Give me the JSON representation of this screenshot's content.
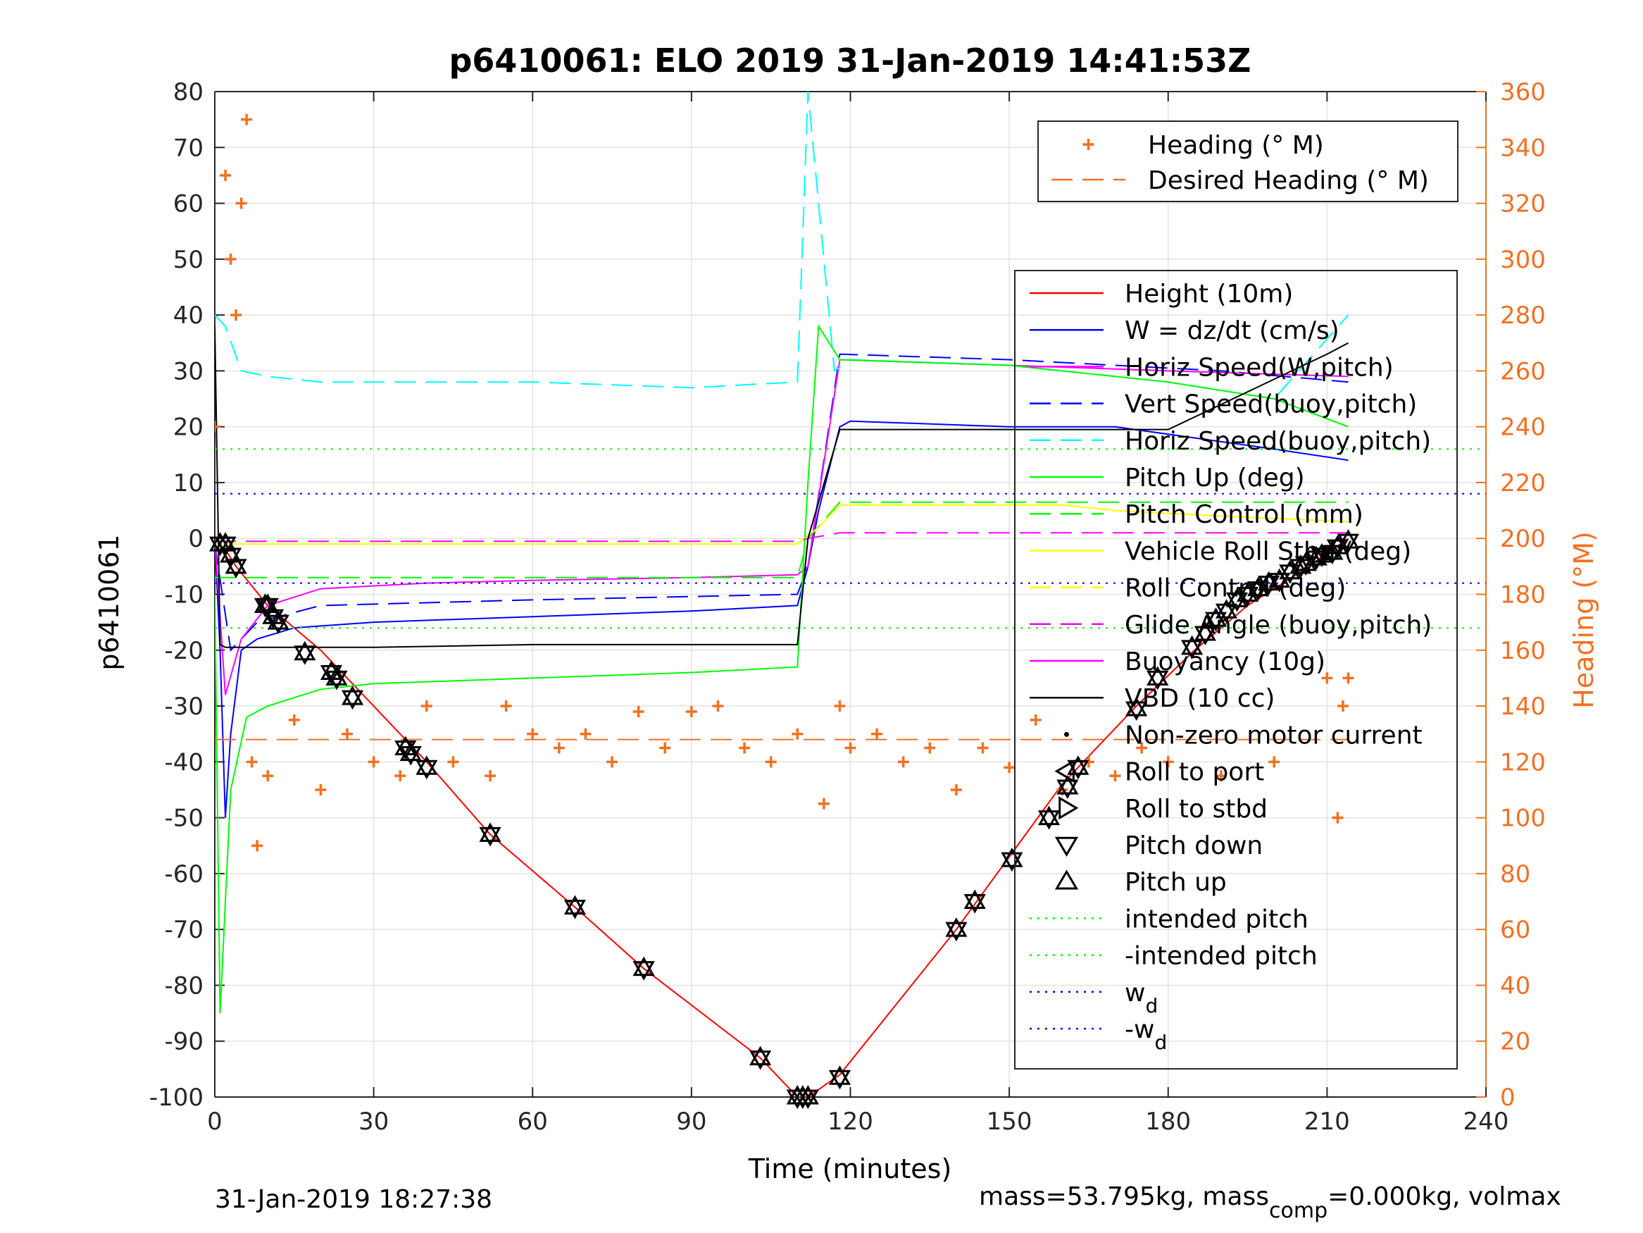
{
  "chart_data": {
    "type": "line",
    "title": "p6410061: ELO 2019 31-Jan-2019 14:41:53Z",
    "xlabel": "Time (minutes)",
    "ylabel": "p6410061",
    "y2label": "Heading (°M)",
    "xlim": [
      0,
      240
    ],
    "ylim": [
      -100,
      80
    ],
    "y2lim": [
      0,
      360
    ],
    "xticks": [
      "0",
      "30",
      "60",
      "90",
      "120",
      "150",
      "180",
      "210",
      "240"
    ],
    "yticks": [
      "80",
      "70",
      "60",
      "50",
      "40",
      "30",
      "20",
      "10",
      "0",
      "-10",
      "-20",
      "-30",
      "-40",
      "-50",
      "-60",
      "-70",
      "-80",
      "-90",
      "-100"
    ],
    "y2ticks": [
      "360",
      "340",
      "320",
      "300",
      "280",
      "260",
      "240",
      "220",
      "200",
      "180",
      "160",
      "140",
      "120",
      "100",
      "80",
      "60",
      "40",
      "20",
      "0"
    ],
    "grid": true,
    "legend_right_axis": [
      {
        "label": "Heading (° M)",
        "color": "#f37021",
        "style": "plus"
      },
      {
        "label": "Desired Heading (° M)",
        "color": "#f37021",
        "style": "dash"
      }
    ],
    "legend_left_axis": [
      {
        "label": "Height (10m)",
        "color": "#ff0000",
        "style": "solid"
      },
      {
        "label": "W = dz/dt (cm/s)",
        "color": "#0000ff",
        "style": "solid"
      },
      {
        "label": "Horiz Speed(W,pitch)",
        "color": "#ff00ff",
        "style": "solid"
      },
      {
        "label": "Vert Speed(buoy,pitch)",
        "color": "#0000ff",
        "style": "dash"
      },
      {
        "label": "Horiz Speed(buoy,pitch)",
        "color": "#00ffff",
        "style": "dash"
      },
      {
        "label": "Pitch Up (deg)",
        "color": "#00ff00",
        "style": "solid"
      },
      {
        "label": "Pitch Control (mm)",
        "color": "#00ff00",
        "style": "dash"
      },
      {
        "label": "Vehicle Roll Stbd (deg)",
        "color": "#ffff00",
        "style": "solid"
      },
      {
        "label": "Roll Control (deg)",
        "color": "#ffff00",
        "style": "dash"
      },
      {
        "label": "Glide Angle (buoy,pitch)",
        "color": "#ff00ff",
        "style": "dash"
      },
      {
        "label": "Buoyancy (10g)",
        "color": "#ff00ff",
        "style": "solid"
      },
      {
        "label": "VBD (10 cc)",
        "color": "#000000",
        "style": "solid"
      },
      {
        "label": "Non-zero motor current",
        "color": "#000000",
        "style": "dot"
      },
      {
        "label": "Roll to port",
        "color": "#000000",
        "style": "tri-left"
      },
      {
        "label": "Roll to stbd",
        "color": "#000000",
        "style": "tri-right"
      },
      {
        "label": "Pitch down",
        "color": "#000000",
        "style": "tri-down"
      },
      {
        "label": "Pitch up",
        "color": "#000000",
        "style": "tri-up"
      },
      {
        "label": "intended pitch",
        "color": "#00ff00",
        "style": "dotted"
      },
      {
        "label": "-intended pitch",
        "color": "#00ff00",
        "style": "dotted"
      },
      {
        "label": "w",
        "sub": "d",
        "color": "#0000ff",
        "style": "dotted"
      },
      {
        "label": "-w",
        "sub": "d",
        "color": "#0000ff",
        "style": "dotted"
      }
    ],
    "series": [
      {
        "name": "Height (10m)",
        "color": "#ff0000",
        "axis": "left",
        "x": [
          0,
          2,
          4,
          10,
          20,
          30,
          40,
          52,
          68,
          81,
          103,
          110,
          112,
          118,
          140,
          150,
          160,
          174,
          185,
          195,
          205,
          214
        ],
        "y": [
          -2,
          -2,
          -5,
          -12,
          -20,
          -30,
          -40,
          -53,
          -66,
          -77,
          -93,
          -100,
          -100,
          -96,
          -70,
          -57,
          -44,
          -30,
          -20,
          -12,
          -6,
          0
        ]
      },
      {
        "name": "W = dz/dt (cm/s)",
        "color": "#0000ff",
        "axis": "left",
        "x": [
          0,
          1,
          2,
          3,
          5,
          8,
          15,
          30,
          60,
          90,
          110,
          112,
          114,
          118,
          120,
          150,
          170,
          200,
          214
        ],
        "y": [
          0,
          -20,
          -50,
          -35,
          -20,
          -18,
          -16,
          -15,
          -14,
          -13,
          -12,
          -5,
          5,
          20,
          21,
          20,
          20,
          16,
          14
        ]
      },
      {
        "name": "Vert Speed(buoy,pitch)",
        "color": "#0000ff",
        "axis": "left",
        "x": [
          0,
          3,
          8,
          20,
          60,
          110,
          112,
          118,
          150,
          190,
          214
        ],
        "y": [
          -1,
          -20,
          -15,
          -12,
          -11,
          -10,
          -5,
          33,
          32,
          30,
          28
        ]
      },
      {
        "name": "Horiz Speed(W,pitch)",
        "color": "#ff00ff",
        "axis": "left",
        "x": [
          0,
          2,
          5,
          10,
          20,
          40,
          60,
          90,
          110,
          112,
          118,
          150,
          180,
          214
        ],
        "y": [
          0,
          -28,
          -18,
          -12,
          -9,
          -8,
          -7.5,
          -7,
          -6.5,
          -5,
          32,
          31,
          30,
          29
        ]
      },
      {
        "name": "Horiz Speed(buoy,pitch)",
        "color": "#00ffff",
        "axis": "left",
        "x": [
          0,
          2,
          5,
          10,
          20,
          40,
          60,
          90,
          110,
          112,
          117,
          120,
          150,
          180,
          200,
          214
        ],
        "y": [
          40,
          38,
          30,
          29,
          28,
          28,
          28,
          27,
          28,
          80,
          30,
          32,
          31,
          28,
          25,
          40
        ]
      },
      {
        "name": "Pitch Up (deg)",
        "color": "#00ff00",
        "axis": "left",
        "x": [
          0,
          1,
          3,
          6,
          10,
          20,
          30,
          60,
          90,
          110,
          112,
          114,
          118,
          150,
          180,
          200,
          214
        ],
        "y": [
          -10,
          -85,
          -45,
          -32,
          -30,
          -27,
          -26,
          -25,
          -24,
          -23,
          10,
          38,
          32,
          31,
          28,
          25,
          20
        ]
      },
      {
        "name": "Pitch Control (mm)",
        "color": "#00ff00",
        "axis": "left",
        "x": [
          0,
          110,
          112,
          118,
          214
        ],
        "y": [
          -7,
          -7,
          0,
          6.5,
          6.5
        ]
      },
      {
        "name": "Vehicle Roll Stbd (deg)",
        "color": "#ffff00",
        "axis": "left",
        "x": [
          0,
          5,
          18,
          22,
          36,
          40,
          52,
          68,
          82,
          104,
          110,
          114,
          118,
          140,
          150,
          160,
          170,
          190,
          214
        ],
        "y": [
          -1,
          -1,
          -1,
          -1,
          -1,
          -1,
          -1,
          -1,
          -1,
          -1,
          -1,
          2,
          6,
          6,
          6,
          6,
          5,
          4,
          3
        ]
      },
      {
        "name": "Glide Angle (buoy,pitch)",
        "color": "#ff00ff",
        "axis": "left",
        "x": [
          0,
          110,
          112,
          118,
          214
        ],
        "y": [
          -0.5,
          -0.5,
          0,
          1,
          1
        ]
      },
      {
        "name": "VBD (10 cc)",
        "color": "#000000",
        "axis": "left",
        "x": [
          0,
          1,
          2,
          30,
          60,
          90,
          110,
          112,
          118,
          150,
          180,
          210,
          214
        ],
        "y": [
          38,
          -19,
          -19.5,
          -19.5,
          -19,
          -19,
          -19,
          0,
          19.5,
          19.5,
          19.5,
          33,
          35
        ]
      },
      {
        "name": "Heading (° M)",
        "color": "#f37021",
        "axis": "right",
        "x": [
          0,
          2,
          3,
          4,
          5,
          6,
          7,
          8,
          10,
          15,
          20,
          25,
          30,
          35,
          40,
          45,
          52,
          55,
          60,
          65,
          70,
          75,
          80,
          85,
          90,
          95,
          100,
          105,
          110,
          115,
          118,
          120,
          125,
          130,
          135,
          140,
          145,
          150,
          155,
          160,
          165,
          170,
          175,
          180,
          190,
          200,
          210,
          212,
          213,
          214
        ],
        "y": [
          240,
          330,
          300,
          280,
          320,
          350,
          120,
          90,
          115,
          135,
          110,
          130,
          120,
          115,
          140,
          120,
          115,
          140,
          130,
          125,
          130,
          120,
          138,
          125,
          138,
          140,
          125,
          120,
          130,
          105,
          140,
          125,
          130,
          120,
          125,
          110,
          125,
          118,
          135,
          110,
          120,
          115,
          125,
          120,
          115,
          120,
          150,
          100,
          140,
          150
        ]
      },
      {
        "name": "Desired Heading (° M)",
        "color": "#f37021",
        "axis": "right",
        "x": [
          0,
          214
        ],
        "y": [
          128,
          128
        ]
      },
      {
        "name": "intended pitch",
        "color": "#00ff00",
        "axis": "left",
        "x": [
          0,
          240
        ],
        "y": [
          16,
          16
        ]
      },
      {
        "name": "-intended pitch",
        "color": "#00ff00",
        "axis": "left",
        "x": [
          0,
          240
        ],
        "y": [
          -16,
          -16
        ]
      },
      {
        "name": "w_d",
        "color": "#0000ff",
        "axis": "left",
        "x": [
          0,
          240
        ],
        "y": [
          8,
          8
        ]
      },
      {
        "name": "-w_d",
        "color": "#0000ff",
        "axis": "left",
        "x": [
          0,
          240
        ],
        "y": [
          -8,
          -8
        ]
      }
    ],
    "motor_events": {
      "x": [
        1,
        2,
        3,
        4,
        9.5,
        10,
        11,
        12,
        17,
        22,
        23,
        26,
        36,
        37,
        40,
        52,
        68,
        81,
        103,
        110,
        111,
        112,
        118,
        140,
        143.5,
        150.5,
        157.5,
        161,
        163,
        174,
        178,
        184.5,
        187,
        189,
        191,
        193,
        195,
        197,
        199,
        201,
        203,
        205,
        206,
        208,
        209,
        211,
        212,
        214
      ],
      "y": [
        -1,
        -1,
        -3,
        -5,
        -12,
        -12,
        -14,
        -15,
        -20.5,
        -24,
        -25,
        -28.5,
        -37.5,
        -38.5,
        -41,
        -53,
        -66,
        -77,
        -93,
        -100,
        -100,
        -100,
        -96.5,
        -70,
        -65,
        -57.5,
        -50,
        -44.5,
        -41,
        -30.5,
        -25,
        -19.5,
        -17,
        -14.5,
        -13,
        -11,
        -10,
        -9,
        -8,
        -7.5,
        -6,
        -5,
        -4.5,
        -3.5,
        -3,
        -2.5,
        -1.5,
        -0.5
      ]
    },
    "legend_placement": "top-right (heading), right (others)"
  },
  "footer": {
    "timestamp": "31-Jan-2019 18:27:38",
    "mass_text": "mass=53.795kg, mass",
    "mass_sub": "comp",
    "mass_text2": "=0.000kg, volmax"
  }
}
